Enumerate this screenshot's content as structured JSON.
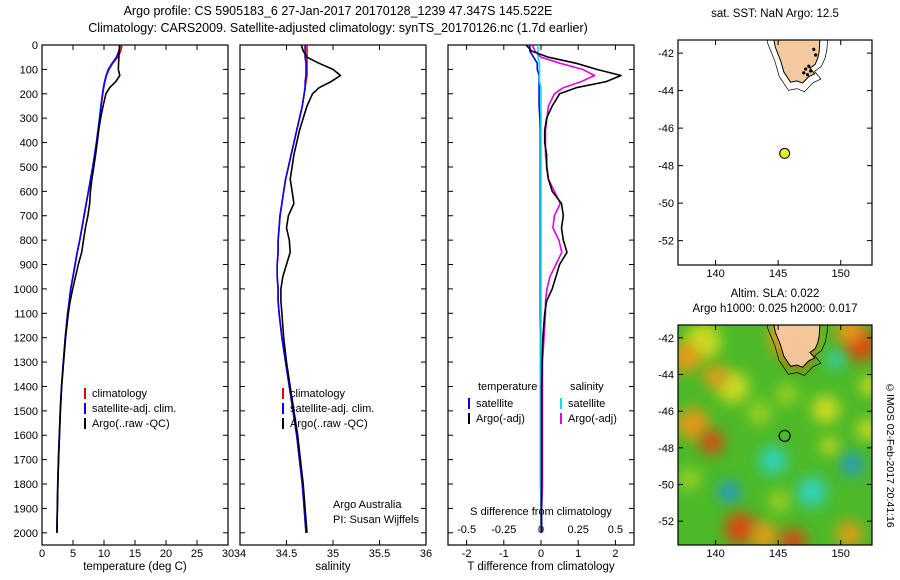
{
  "titles": {
    "line1": "Argo profile: CS 5905183_6 27-Jan-2017 20170128_1239 47.347S 145.522E",
    "line2": "Climatology: CARS2009. Satellite-adjusted climatology: synTS_20170126.nc (1.7d earlier)"
  },
  "credit": "©IMOS 02-Feb-2017 20:41:16",
  "colors": {
    "climatology": "#e00000",
    "satellite_adj": "#0000ff",
    "argo": "#000000",
    "sat_salinity": "#00e5e5",
    "argo_salinity": "#e800e8",
    "land": "#f5c9a0",
    "argo_dot": "#e6e838",
    "heat_base": "#4cb929"
  },
  "chart_data": [
    {
      "type": "line",
      "name": "temperature-profile",
      "xlabel": "temperature (deg C)",
      "xlim": [
        0,
        30
      ],
      "xticks": [
        0,
        5,
        10,
        15,
        20,
        25,
        30
      ],
      "ylim": [
        0,
        2050
      ],
      "yticks": [
        0,
        100,
        200,
        300,
        400,
        500,
        600,
        700,
        800,
        900,
        1000,
        1100,
        1200,
        1300,
        1400,
        1500,
        1600,
        1700,
        1800,
        1900,
        2000
      ],
      "show_ylabels": true,
      "depths": [
        0,
        25,
        50,
        75,
        100,
        125,
        150,
        175,
        200,
        250,
        300,
        350,
        400,
        450,
        500,
        550,
        600,
        650,
        700,
        750,
        800,
        850,
        900,
        950,
        1000,
        1050,
        1100,
        1200,
        1300,
        1400,
        1500,
        1600,
        1700,
        1800,
        1900,
        2000
      ],
      "series": [
        {
          "name": "climatology",
          "color": "#e00000",
          "values": [
            12.9,
            12.7,
            12.2,
            11.4,
            10.8,
            10.4,
            10.15,
            9.95,
            9.8,
            9.55,
            9.3,
            9.05,
            8.8,
            8.5,
            8.2,
            7.85,
            7.5,
            7.15,
            6.8,
            6.45,
            6.1,
            5.7,
            5.35,
            5.0,
            4.65,
            4.4,
            4.15,
            3.75,
            3.45,
            3.15,
            2.95,
            2.8,
            2.65,
            2.55,
            2.47,
            2.4
          ]
        },
        {
          "name": "satellite-adj. clim.",
          "color": "#0000ff",
          "values": [
            12.6,
            12.4,
            12.0,
            11.3,
            10.7,
            10.35,
            10.1,
            9.9,
            9.75,
            9.5,
            9.27,
            9.03,
            8.78,
            8.48,
            8.18,
            7.83,
            7.48,
            7.13,
            6.78,
            6.43,
            6.08,
            5.68,
            5.33,
            4.98,
            4.63,
            4.38,
            4.13,
            3.74,
            3.44,
            3.14,
            2.94,
            2.79,
            2.64,
            2.54,
            2.46,
            2.4
          ]
        },
        {
          "name": "Argo(..raw -QC)",
          "color": "#000000",
          "values": [
            12.5,
            12.45,
            12.4,
            12.35,
            12.3,
            12.55,
            11.9,
            10.9,
            10.3,
            9.85,
            9.45,
            9.15,
            8.9,
            8.65,
            8.35,
            8.05,
            7.8,
            7.7,
            7.4,
            7.0,
            6.7,
            6.4,
            5.85,
            5.4,
            4.95,
            4.55,
            4.25,
            3.8,
            3.48,
            3.17,
            2.97,
            2.82,
            2.67,
            2.57,
            2.48,
            2.41
          ]
        }
      ]
    },
    {
      "type": "line",
      "name": "salinity-profile",
      "xlabel": "salinity",
      "xlim": [
        34,
        36
      ],
      "xticks": [
        34,
        34.5,
        35,
        35.5,
        36
      ],
      "ylim": [
        0,
        2050
      ],
      "yticks": [
        0,
        100,
        200,
        300,
        400,
        500,
        600,
        700,
        800,
        900,
        1000,
        1100,
        1200,
        1300,
        1400,
        1500,
        1600,
        1700,
        1800,
        1900,
        2000
      ],
      "show_ylabels": false,
      "annotations": [
        "Argo Australia",
        "PI: Susan Wijffels"
      ],
      "depths": [
        0,
        25,
        50,
        75,
        100,
        125,
        150,
        175,
        200,
        250,
        300,
        350,
        400,
        450,
        500,
        550,
        600,
        650,
        700,
        750,
        800,
        850,
        900,
        950,
        1000,
        1050,
        1100,
        1200,
        1300,
        1400,
        1500,
        1600,
        1700,
        1800,
        1900,
        2000
      ],
      "series": [
        {
          "name": "climatology",
          "color": "#e00000",
          "values": [
            34.72,
            34.72,
            34.72,
            34.72,
            34.72,
            34.72,
            34.71,
            34.7,
            34.69,
            34.67,
            34.64,
            34.61,
            34.58,
            34.55,
            34.52,
            34.49,
            34.47,
            34.45,
            34.43,
            34.42,
            34.41,
            34.41,
            34.4,
            34.4,
            34.41,
            34.41,
            34.42,
            34.45,
            34.49,
            34.53,
            34.57,
            34.61,
            34.64,
            34.67,
            34.69,
            34.71
          ]
        },
        {
          "name": "satellite-adj. clim.",
          "color": "#0000ff",
          "values": [
            34.7,
            34.7,
            34.7,
            34.71,
            34.71,
            34.71,
            34.7,
            34.7,
            34.69,
            34.67,
            34.64,
            34.61,
            34.58,
            34.55,
            34.52,
            34.49,
            34.47,
            34.45,
            34.43,
            34.42,
            34.41,
            34.41,
            34.4,
            34.4,
            34.41,
            34.41,
            34.42,
            34.45,
            34.49,
            34.53,
            34.57,
            34.61,
            34.64,
            34.67,
            34.69,
            34.71
          ]
        },
        {
          "name": "Argo(..raw -QC)",
          "color": "#000000",
          "values": [
            34.66,
            34.68,
            34.72,
            34.85,
            35.0,
            35.08,
            34.98,
            34.85,
            34.78,
            34.72,
            34.68,
            34.64,
            34.61,
            34.58,
            34.56,
            34.54,
            34.56,
            34.58,
            34.52,
            34.5,
            34.53,
            34.54,
            34.5,
            34.46,
            34.44,
            34.44,
            34.45,
            34.47,
            34.5,
            34.54,
            34.58,
            34.62,
            34.65,
            34.68,
            34.7,
            34.72
          ]
        }
      ]
    },
    {
      "type": "line",
      "name": "difference-profile",
      "xlabel_t": "T difference from climatology",
      "xlabel_s": "S difference from climatology",
      "legend_headers": [
        "temperature",
        "salinity"
      ],
      "xlim": [
        -2.5,
        2.5
      ],
      "xticks": [
        -2,
        -1,
        0,
        1,
        2
      ],
      "xlim_s": [
        -0.625,
        0.625
      ],
      "xticks_s": [
        -0.5,
        -0.25,
        0,
        0.25,
        0.5
      ],
      "ylim": [
        0,
        2050
      ],
      "yticks": [
        0,
        100,
        200,
        300,
        400,
        500,
        600,
        700,
        800,
        900,
        1000,
        1100,
        1200,
        1300,
        1400,
        1500,
        1600,
        1700,
        1800,
        1900,
        2000
      ],
      "show_ylabels": false,
      "depths": [
        0,
        25,
        50,
        75,
        100,
        125,
        150,
        175,
        200,
        250,
        300,
        350,
        400,
        450,
        500,
        550,
        600,
        650,
        700,
        750,
        800,
        850,
        900,
        950,
        1000,
        1050,
        1100,
        1200,
        1300,
        1400,
        1500,
        1600,
        1700,
        1800,
        1900,
        2000
      ],
      "series": [
        {
          "name": "satellite",
          "scale": "T",
          "color": "#0000ff",
          "values": [
            -0.3,
            -0.3,
            -0.2,
            -0.1,
            -0.1,
            -0.05,
            -0.05,
            -0.05,
            -0.05,
            -0.05,
            -0.03,
            -0.02,
            -0.02,
            -0.02,
            -0.02,
            -0.02,
            -0.02,
            -0.02,
            -0.02,
            -0.02,
            -0.02,
            -0.02,
            -0.02,
            -0.02,
            -0.02,
            -0.02,
            -0.02,
            -0.01,
            -0.01,
            -0.01,
            -0.01,
            -0.01,
            -0.01,
            -0.01,
            0,
            0
          ]
        },
        {
          "name": "satellite",
          "scale": "S",
          "color": "#00e5e5",
          "values": [
            -0.02,
            -0.02,
            -0.02,
            -0.01,
            -0.01,
            -0.01,
            -0.01,
            0,
            0,
            0,
            0,
            0,
            0,
            0,
            0,
            0,
            0,
            0,
            0,
            0,
            0,
            0,
            0,
            0,
            0,
            0,
            0,
            0,
            0,
            0,
            0,
            0,
            0,
            0,
            0,
            0
          ]
        },
        {
          "name": "Argo(-adj)",
          "scale": "S",
          "color": "#e800e8",
          "values": [
            -0.06,
            -0.04,
            0,
            0.13,
            0.28,
            0.36,
            0.27,
            0.15,
            0.09,
            0.05,
            0.04,
            0.03,
            0.03,
            0.03,
            0.04,
            0.05,
            0.09,
            0.13,
            0.09,
            0.08,
            0.12,
            0.14,
            0.1,
            0.06,
            0.04,
            0.03,
            0.03,
            0.02,
            0.01,
            0.01,
            0.01,
            0.01,
            0.01,
            0.01,
            0.005,
            0.005
          ]
        },
        {
          "name": "Argo(-adj)",
          "scale": "T",
          "color": "#000000",
          "values": [
            -0.4,
            -0.25,
            0.2,
            0.95,
            1.5,
            2.15,
            1.75,
            0.95,
            0.5,
            0.3,
            0.15,
            0.1,
            0.1,
            0.15,
            0.15,
            0.2,
            0.3,
            0.55,
            0.6,
            0.55,
            0.6,
            0.7,
            0.5,
            0.4,
            0.3,
            0.15,
            0.1,
            0.05,
            0.03,
            0.02,
            0.02,
            0.02,
            0.02,
            0.02,
            0.01,
            0.01
          ]
        }
      ]
    },
    {
      "type": "map",
      "name": "location-map",
      "title": "sat. SST: NaN Argo: 12.5",
      "xlim": [
        137,
        152.5
      ],
      "ylim": [
        -41.3,
        -53.3
      ],
      "xticks": [
        140,
        145,
        150
      ],
      "yticks": [
        -42,
        -44,
        -46,
        -48,
        -50,
        -52
      ],
      "marker": {
        "lon": 145.522,
        "lat": -47.347
      },
      "coastline": [
        [
          144.6,
          -40.95
        ],
        [
          145.05,
          -40.8
        ],
        [
          145.55,
          -40.88
        ],
        [
          145.95,
          -41.1
        ],
        [
          146.35,
          -41.15
        ],
        [
          146.8,
          -41.08
        ],
        [
          147.3,
          -40.95
        ],
        [
          147.75,
          -40.82
        ],
        [
          148.25,
          -40.88
        ],
        [
          148.33,
          -41.35
        ],
        [
          148.28,
          -41.9
        ],
        [
          148.18,
          -42.25
        ],
        [
          147.95,
          -42.6
        ],
        [
          147.55,
          -42.8
        ],
        [
          147.92,
          -43.1
        ],
        [
          147.45,
          -43.25
        ],
        [
          146.95,
          -43.6
        ],
        [
          146.5,
          -43.48
        ],
        [
          146.0,
          -43.55
        ],
        [
          145.45,
          -43.0
        ],
        [
          145.2,
          -42.4
        ],
        [
          144.78,
          -41.7
        ],
        [
          144.65,
          -41.25
        ]
      ],
      "specks": [
        [
          147.2,
          -42.85
        ],
        [
          147.45,
          -42.7
        ],
        [
          147.6,
          -42.95
        ],
        [
          147.05,
          -43.05
        ],
        [
          147.35,
          -43.15
        ],
        [
          148.0,
          -42.1
        ],
        [
          147.85,
          -41.8
        ]
      ]
    },
    {
      "type": "heatmap",
      "name": "sla-map",
      "title_lines": [
        "Altim. SLA: 0.022",
        "Argo h1000: 0.025 h2000: 0.017"
      ],
      "xlim": [
        137,
        152.5
      ],
      "ylim": [
        -41.3,
        -53.3
      ],
      "xticks": [
        140,
        145,
        150
      ],
      "yticks": [
        -42,
        -44,
        -46,
        -48,
        -50,
        -52
      ],
      "marker": {
        "lon": 145.522,
        "lat": -47.347
      },
      "base_color": "#4cb929",
      "blobs": [
        {
          "lon": 146.2,
          "lat": -41.9,
          "r": 24,
          "c": "#f79617"
        },
        {
          "lon": 146.6,
          "lat": -42.9,
          "r": 13,
          "c": "#e93a0c"
        },
        {
          "lon": 139.0,
          "lat": -42.2,
          "r": 18,
          "c": "#dedf20"
        },
        {
          "lon": 137.6,
          "lat": -43.1,
          "r": 15,
          "c": "#f79617"
        },
        {
          "lon": 151.6,
          "lat": -42.4,
          "r": 16,
          "c": "#e93a0c"
        },
        {
          "lon": 150.7,
          "lat": -41.6,
          "r": 14,
          "c": "#f79617"
        },
        {
          "lon": 152.3,
          "lat": -44.6,
          "r": 10,
          "c": "#dedf20"
        },
        {
          "lon": 138.2,
          "lat": -46.7,
          "r": 16,
          "c": "#f79617"
        },
        {
          "lon": 139.7,
          "lat": -47.7,
          "r": 12,
          "c": "#e93a0c"
        },
        {
          "lon": 141.4,
          "lat": -44.7,
          "r": 16,
          "c": "#dedf20"
        },
        {
          "lon": 140.0,
          "lat": -44.1,
          "r": 12,
          "c": "#f79617"
        },
        {
          "lon": 148.8,
          "lat": -45.9,
          "r": 14,
          "c": "#dedf20"
        },
        {
          "lon": 152.2,
          "lat": -47.0,
          "r": 11,
          "c": "#dedf20"
        },
        {
          "lon": 144.6,
          "lat": -48.7,
          "r": 14,
          "c": "#2fd6cf"
        },
        {
          "lon": 147.7,
          "lat": -50.4,
          "r": 15,
          "c": "#2fd6cf"
        },
        {
          "lon": 150.9,
          "lat": -48.9,
          "r": 11,
          "c": "#2196e0"
        },
        {
          "lon": 141.1,
          "lat": -50.4,
          "r": 11,
          "c": "#2196e0"
        },
        {
          "lon": 149.6,
          "lat": -43.2,
          "r": 9,
          "c": "#2fd6cf"
        },
        {
          "lon": 142.0,
          "lat": -52.4,
          "r": 16,
          "c": "#e93a0c"
        },
        {
          "lon": 143.9,
          "lat": -52.8,
          "r": 14,
          "c": "#f79617"
        },
        {
          "lon": 146.2,
          "lat": -53.1,
          "r": 13,
          "c": "#e93a0c"
        },
        {
          "lon": 150.7,
          "lat": -52.7,
          "r": 13,
          "c": "#f79617"
        },
        {
          "lon": 143.5,
          "lat": -46.1,
          "r": 12,
          "c": "#a6d421"
        },
        {
          "lon": 145.7,
          "lat": -45.1,
          "r": 11,
          "c": "#a6d421"
        },
        {
          "lon": 137.9,
          "lat": -49.7,
          "r": 11,
          "c": "#a6d421"
        },
        {
          "lon": 145.1,
          "lat": -50.9,
          "r": 11,
          "c": "#a6d421"
        },
        {
          "lon": 149.1,
          "lat": -47.9,
          "r": 9,
          "c": "#dedf20"
        }
      ]
    }
  ]
}
